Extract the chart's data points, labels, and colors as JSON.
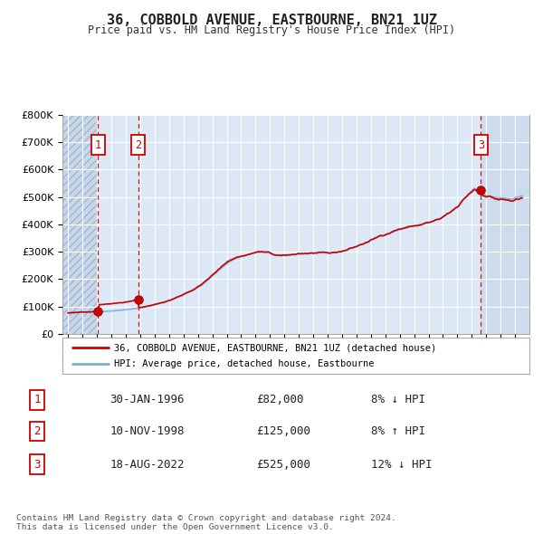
{
  "title": "36, COBBOLD AVENUE, EASTBOURNE, BN21 1UZ",
  "subtitle": "Price paid vs. HM Land Registry's House Price Index (HPI)",
  "legend_line1": "36, COBBOLD AVENUE, EASTBOURNE, BN21 1UZ (detached house)",
  "legend_line2": "HPI: Average price, detached house, Eastbourne",
  "transactions": [
    {
      "label": "1",
      "date": "30-JAN-1996",
      "price": 82000,
      "year": 1996.08
    },
    {
      "label": "2",
      "date": "10-NOV-1998",
      "price": 125000,
      "year": 1998.86
    },
    {
      "label": "3",
      "date": "18-AUG-2022",
      "price": 525000,
      "year": 2022.63
    }
  ],
  "table_rows": [
    {
      "num": "1",
      "date": "30-JAN-1996",
      "price": "£82,000",
      "hpi": "8% ↓ HPI"
    },
    {
      "num": "2",
      "date": "10-NOV-1998",
      "price": "£125,000",
      "hpi": "8% ↑ HPI"
    },
    {
      "num": "3",
      "date": "18-AUG-2022",
      "price": "£525,000",
      "hpi": "12% ↓ HPI"
    }
  ],
  "footer": "Contains HM Land Registry data © Crown copyright and database right 2024.\nThis data is licensed under the Open Government Licence v3.0.",
  "ylim": [
    0,
    800000
  ],
  "yticks": [
    0,
    100000,
    200000,
    300000,
    400000,
    500000,
    600000,
    700000,
    800000
  ],
  "background_color": "#ffffff",
  "plot_bg_color": "#dce8f5",
  "grid_color": "#ffffff",
  "line_color_red": "#cc0000",
  "line_color_blue": "#7aafd4",
  "marker_color_red": "#cc0000",
  "label_box_color": "#cc0000",
  "hatch_bg": "#c8d8ea",
  "shade_color": "#dce8f5"
}
